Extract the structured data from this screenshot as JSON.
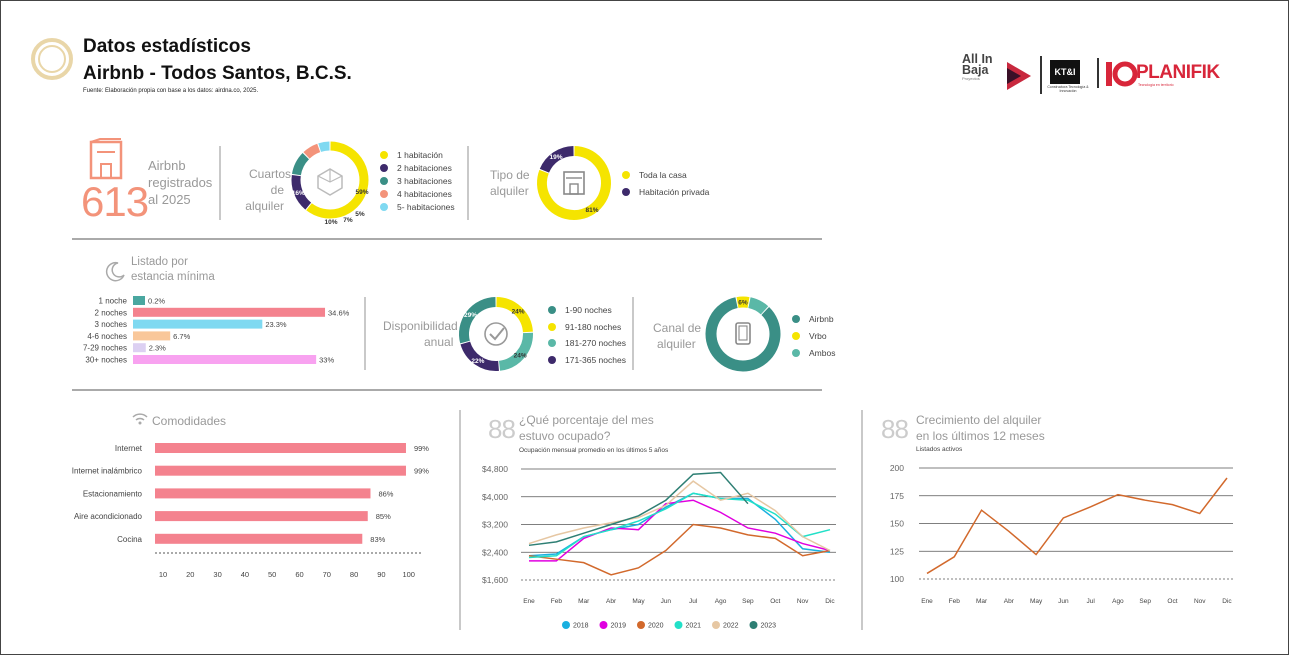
{
  "header": {
    "title_line1": "Datos estadísticos",
    "title_line2": "Airbnb - Todos Santos, B.C.S.",
    "source": "Fuente: Elaboración propia con base a los datos: airdna.co, 2025."
  },
  "logos": {
    "allinbaja_word": "All In Baja",
    "allinbaja_sub": "Proyectos",
    "kti_word": "KT&I",
    "kti_sub": "Constructora Tecnología & Innovación",
    "planifik_word": "PLANIFIK",
    "planifik_sub": "Tecnología en territorio"
  },
  "colors": {
    "salmon": "#f3937a",
    "yellow": "#f5e400",
    "purple": "#3d2a6b",
    "teal": "#3a8f86",
    "teal_light": "#5ab8a7",
    "cyan": "#7fd9f1",
    "pink_bar": "#f4828e",
    "orange_line": "#d2692c"
  },
  "stat": {
    "value": "613",
    "label_line1": "Airbnb",
    "label_line2": "registrados",
    "label_line3": "al 2025"
  },
  "cuartos": {
    "label_line1": "Cuartos",
    "label_line2": "de alquiler",
    "legend": [
      "1 habitación",
      "2 habitaciones",
      "3 habitaciones",
      "4 habitaciones",
      "5- habitaciones"
    ],
    "legend_colors": [
      "#f5e400",
      "#3d2a6b",
      "#3a8f86",
      "#f3937a",
      "#7fd9f1"
    ],
    "pct_labels": [
      "59%",
      "16%",
      "10%",
      "7%",
      "5%"
    ]
  },
  "tipo": {
    "label_line1": "Tipo de",
    "label_line2": "alquiler",
    "legend": [
      "Toda la casa",
      "Habitación privada"
    ],
    "legend_colors": [
      "#f5e400",
      "#3d2a6b"
    ],
    "pct_labels": [
      "81%",
      "19%"
    ]
  },
  "estancia": {
    "label_line1": "Listado por",
    "label_line2": "estancia mínima"
  },
  "disponibilidad": {
    "label_line1": "Disponibilidad",
    "label_line2": "anual",
    "legend": [
      "1-90 noches",
      "91-180 noches",
      "181-270 noches",
      "171-365 noches"
    ],
    "legend_colors": [
      "#3a8f86",
      "#f5e400",
      "#5ab8a7",
      "#3d2a6b"
    ],
    "pct_labels": [
      "29%",
      "24%",
      "24%",
      "22%"
    ]
  },
  "canal": {
    "label_line1": "Canal de",
    "label_line2": "alquiler",
    "legend": [
      "Airbnb",
      "Vrbo",
      "Ambos"
    ],
    "legend_colors": [
      "#3a8f86",
      "#f5e400",
      "#5ab8a7"
    ],
    "pct_labels": [
      "6%"
    ]
  },
  "comodidades": {
    "title": "Comodidades"
  },
  "ocupacion": {
    "title_line1": "¿Qué porcentaje del mes",
    "title_line2": "estuvo ocupado?",
    "subtitle": "Ocupación mensual promedio en los últimos 5 años"
  },
  "crecimiento": {
    "title_line1": "Crecimiento del alquiler",
    "title_line2": "en los últimos 12 meses",
    "subtitle": "Listados activos"
  },
  "chart_data": [
    {
      "type": "pie",
      "id": "cuartos",
      "categories": [
        "1 habitación",
        "2 habitaciones",
        "3 habitaciones",
        "4 habitaciones",
        "5- habitaciones"
      ],
      "values": [
        59,
        16,
        10,
        7,
        5
      ]
    },
    {
      "type": "pie",
      "id": "tipo",
      "categories": [
        "Toda la casa",
        "Habitación privada"
      ],
      "values": [
        81,
        19
      ]
    },
    {
      "type": "bar",
      "id": "estancia",
      "categories": [
        "1 noche",
        "2 noches",
        "3 noches",
        "4-6 noches",
        "7-29 noches",
        "30+ noches"
      ],
      "values": [
        0.2,
        34.6,
        23.3,
        6.7,
        2.3,
        33
      ],
      "value_labels": [
        "0.2%",
        "34.6%",
        "23.3%",
        "6.7%",
        "2.3%",
        "33%"
      ],
      "colors": [
        "#4aa7a0",
        "#f4828e",
        "#7fd9f1",
        "#f9c79a",
        "#dcd0f2",
        "#f8a2f0"
      ]
    },
    {
      "type": "pie",
      "id": "disponibilidad",
      "categories": [
        "1-90 noches",
        "91-180 noches",
        "181-270 noches",
        "171-365 noches"
      ],
      "values": [
        29,
        24,
        24,
        22
      ]
    },
    {
      "type": "pie",
      "id": "canal",
      "categories": [
        "Airbnb",
        "Vrbo",
        "Ambos"
      ],
      "values": [
        85,
        6,
        9
      ]
    },
    {
      "type": "bar",
      "id": "comodidades",
      "categories": [
        "Internet",
        "Internet inalámbrico",
        "Estacionamiento",
        "Aire acondicionado",
        "Cocina"
      ],
      "values": [
        99,
        99,
        86,
        85,
        83
      ],
      "value_labels": [
        "99%",
        "99%",
        "86%",
        "85%",
        "83%"
      ],
      "xticks": [
        "10",
        "20",
        "30",
        "40",
        "50",
        "60",
        "70",
        "80",
        "90",
        "100"
      ],
      "xlim": [
        10,
        100
      ]
    },
    {
      "type": "line",
      "id": "ocupacion",
      "categories": [
        "Ene",
        "Feb",
        "Mar",
        "Abr",
        "May",
        "Jun",
        "Jul",
        "Ago",
        "Sep",
        "Oct",
        "Nov",
        "Dic"
      ],
      "yticks": [
        "$4,800",
        "$4,000",
        "$3,200",
        "$2,400",
        "$1,600"
      ],
      "ylim": [
        1600,
        4800
      ],
      "series": [
        {
          "name": "2018",
          "color": "#1ab0e0",
          "values": [
            2300,
            2350,
            2850,
            3050,
            3200,
            3700,
            4100,
            3950,
            3950,
            3350,
            2500,
            2400
          ]
        },
        {
          "name": "2019",
          "color": "#e000e0",
          "values": [
            2150,
            2150,
            2800,
            3100,
            3050,
            3800,
            3900,
            3550,
            3100,
            2950,
            2650,
            2450
          ]
        },
        {
          "name": "2020",
          "color": "#d2692c",
          "values": [
            2300,
            2200,
            2100,
            1750,
            1950,
            2450,
            3200,
            3100,
            2900,
            2800,
            2300,
            2450
          ]
        },
        {
          "name": "2021",
          "color": "#22e0c8",
          "values": [
            2250,
            2300,
            2850,
            3050,
            3300,
            3650,
            4100,
            3950,
            3900,
            3500,
            2850,
            3050
          ]
        },
        {
          "name": "2022",
          "color": "#e6c7a3",
          "values": [
            2650,
            2900,
            3100,
            3250,
            3400,
            3750,
            4450,
            3900,
            4100,
            3600,
            2850,
            2450
          ]
        },
        {
          "name": "2023",
          "color": "#2e7f74",
          "values": [
            2600,
            2700,
            2950,
            3200,
            3450,
            3900,
            4650,
            4700,
            3800,
            null,
            null,
            null
          ]
        }
      ]
    },
    {
      "type": "line",
      "id": "crecimiento",
      "categories": [
        "Ene",
        "Feb",
        "Mar",
        "Abr",
        "May",
        "Jun",
        "Jul",
        "Ago",
        "Sep",
        "Oct",
        "Nov",
        "Dic"
      ],
      "yticks": [
        "200",
        "175",
        "150",
        "125",
        "100"
      ],
      "ylim": [
        100,
        200
      ],
      "series": [
        {
          "color": "#d2692c",
          "values": [
            105,
            120,
            162,
            143,
            122,
            155,
            165,
            176,
            171,
            167,
            159,
            191
          ]
        }
      ]
    }
  ]
}
